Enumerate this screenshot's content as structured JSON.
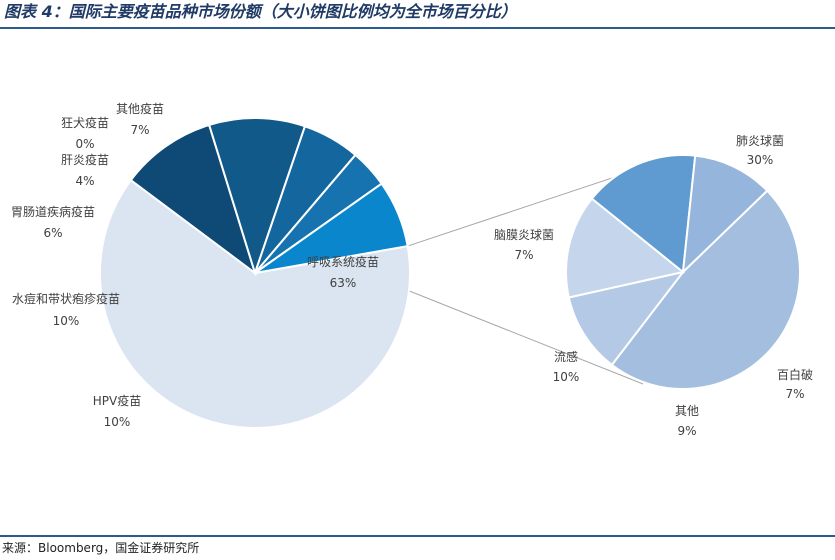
{
  "title": "图表 4：国际主要疫苗品种市场份额（大小饼图比例均为全市场百分比）",
  "source": "来源：Bloomberg，国金证券研究所",
  "chart_data": [
    {
      "type": "pie",
      "name": "main",
      "categories": [
        "呼吸系统疫苗",
        "HPV疫苗",
        "水痘和带状疱疹疫苗",
        "胃肠道疾病疫苗",
        "肝炎疫苗",
        "狂犬疫苗",
        "其他疫苗"
      ],
      "values": [
        63,
        10,
        10,
        6,
        4,
        0,
        7
      ],
      "labels": [
        "63%",
        "10%",
        "10%",
        "6%",
        "4%",
        "0%",
        "7%"
      ],
      "colors": [
        "#dbe5f1",
        "#0f4a77",
        "#105989",
        "#14679e",
        "#1673b0",
        "#0080c6",
        "#0a86cc"
      ]
    },
    {
      "type": "pie",
      "name": "detail",
      "categories": [
        "肺炎球菌",
        "百白破",
        "其他",
        "流感",
        "脑膜炎球菌"
      ],
      "values": [
        30,
        7,
        9,
        10,
        7
      ],
      "labels": [
        "30%",
        "7%",
        "9%",
        "10%",
        "7%"
      ],
      "colors": [
        "#a3bedf",
        "#b3c9e5",
        "#c5d6ec",
        "#5f9bd0",
        "#95b5dc"
      ]
    }
  ]
}
